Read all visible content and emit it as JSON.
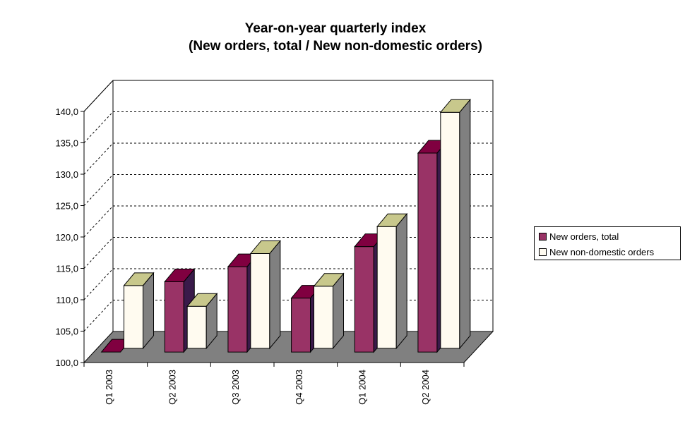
{
  "chart_data": {
    "type": "bar",
    "title": "Year-on-year quarterly index",
    "subtitle": "(New orders, total / New non-domestic orders)",
    "categories": [
      "Q1 2003",
      "Q2 2003",
      "Q3 2003",
      "Q4 2003",
      "Q1 2004",
      "Q2 2004"
    ],
    "series": [
      {
        "name": "New orders, total",
        "values": [
          100.0,
          111.2,
          113.6,
          108.6,
          116.8,
          131.7
        ],
        "color": "#993366"
      },
      {
        "name": "New non-domestic orders",
        "values": [
          110.0,
          106.7,
          115.1,
          109.9,
          119.4,
          137.6
        ],
        "color": "#FFFBF0"
      }
    ],
    "ylim": [
      100,
      140
    ],
    "yticks": [
      "100,0",
      "105,0",
      "110,0",
      "115,0",
      "120,0",
      "125,0",
      "130,0",
      "135,0",
      "140,0"
    ],
    "grid": "dashed horizontal",
    "legend_position": "right",
    "style": "3d clustered column",
    "colors": {
      "floor": "#808080",
      "top_series1": "#800040",
      "top_series2": "#C8C88C",
      "side_series1": "#3A1A4A",
      "side_series2": "#808080"
    }
  }
}
